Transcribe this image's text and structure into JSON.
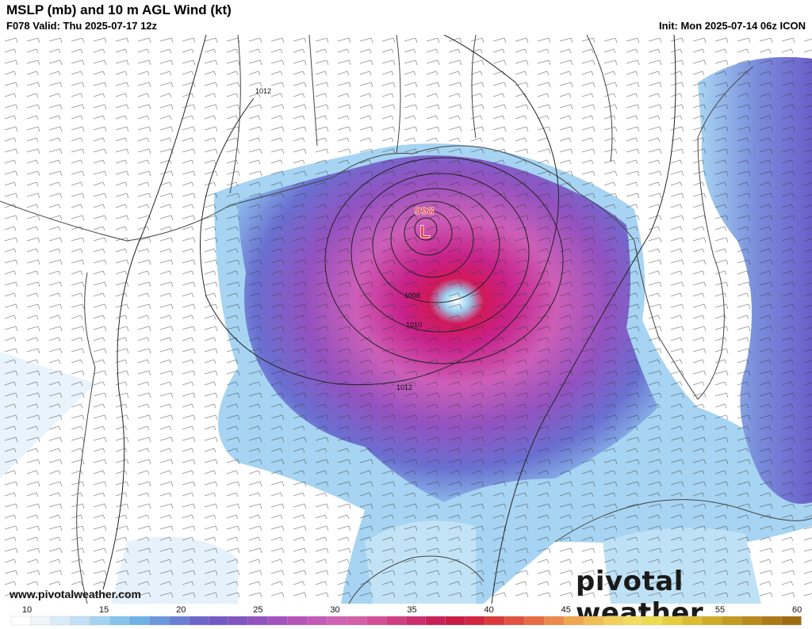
{
  "header": {
    "title": "MSLP (mb) and 10 m AGL Wind (kt)",
    "valid": "F078 Valid: Thu 2025-07-17 12z",
    "init": "Init: Mon 2025-07-14 06z ICON"
  },
  "map": {
    "low_center_pressure": "998",
    "low_symbol": "L",
    "isobar_labels": [
      "1012",
      "1008",
      "1010",
      "1012"
    ]
  },
  "footer": {
    "website": "www.pivotalweather.com",
    "brand": "pivotal weather"
  },
  "legend": {
    "labels": [
      "10",
      "15",
      "20",
      "25",
      "30",
      "35",
      "40",
      "45",
      "50",
      "55",
      "60"
    ],
    "colors": [
      "#ffffff",
      "#eef6fc",
      "#d9ecf8",
      "#bfe0f5",
      "#a4d3f1",
      "#86c4ec",
      "#6fb2e6",
      "#6b98dc",
      "#6a7fd4",
      "#6d66cb",
      "#7459c5",
      "#8154c1",
      "#9152bf",
      "#a452bd",
      "#b654bb",
      "#c55ab8",
      "#cf62b5",
      "#d45fa9",
      "#d24f97",
      "#cf3e82",
      "#cb2d6d",
      "#c81f57",
      "#c71b44",
      "#d3243f",
      "#dc3a3a",
      "#e35340",
      "#e86c45",
      "#ec8a4b",
      "#f0a650",
      "#f2bd55",
      "#f3cf5a",
      "#f2dc5e",
      "#efdb50",
      "#e6cd3f",
      "#dcbd32",
      "#d0ab28",
      "#c59a20",
      "#b9891a",
      "#ad7916",
      "#a06a12"
    ]
  }
}
